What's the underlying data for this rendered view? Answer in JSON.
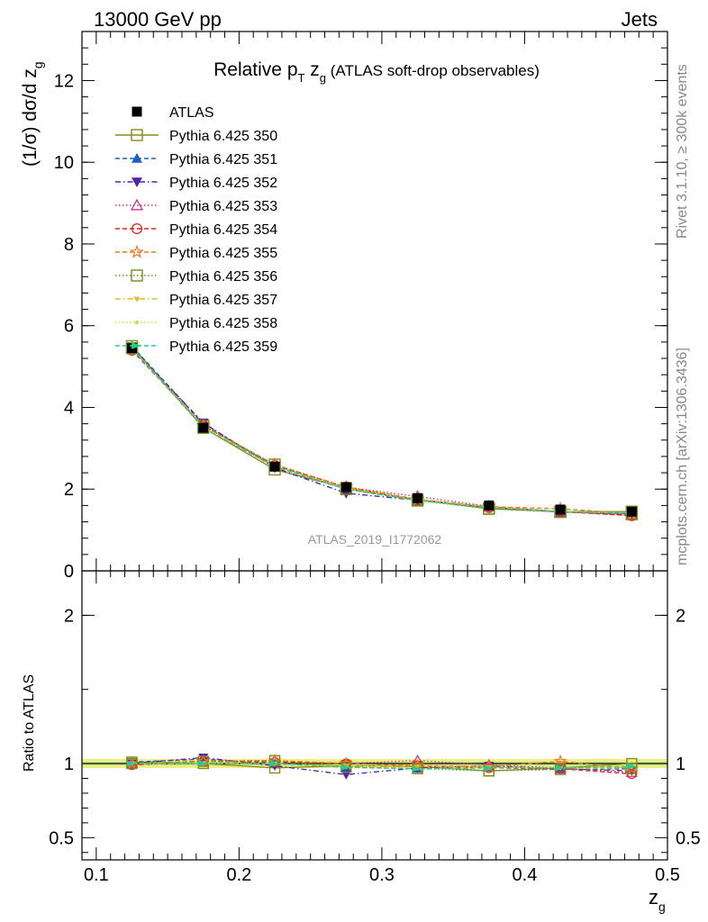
{
  "header": {
    "left": "13000 GeV pp",
    "right": "Jets"
  },
  "side_labels": {
    "rivet": "Rivet 3.1.10, ≥ 300k events",
    "mcplots": "mcplots.cern.ch [arXiv:1306.3436]"
  },
  "watermark": "ATLAS_2019_I1772062",
  "chart_data": [
    {
      "type": "line",
      "panel": "main",
      "title": {
        "main": "Relative p",
        "sub_T": "T",
        "mid": " z",
        "sub_g": "g",
        "rest": " (ATLAS soft-drop observables)"
      },
      "ylabel": "(1/σ) dσ/d z",
      "ylabel_sub": "g",
      "xlim": [
        0.09,
        0.5
      ],
      "ylim": [
        0,
        13.2
      ],
      "y_ticks": [
        "0",
        "2",
        "4",
        "6",
        "8",
        "10",
        "12"
      ],
      "legend_position": "top-left",
      "x": [
        0.125,
        0.175,
        0.225,
        0.275,
        0.325,
        0.375,
        0.425,
        0.475
      ],
      "series": [
        {
          "name": "ATLAS",
          "color": "#000000",
          "marker": "square-filled",
          "dash": "none",
          "values": [
            5.45,
            3.5,
            2.55,
            2.05,
            1.78,
            1.6,
            1.5,
            1.45
          ]
        },
        {
          "name": "Pythia 6.425 350",
          "color": "#8a8a1e",
          "marker": "square-open",
          "dash": "solid",
          "values": [
            5.5,
            3.5,
            2.48,
            2.02,
            1.74,
            1.52,
            1.45,
            1.45
          ]
        },
        {
          "name": "Pythia 6.425 351",
          "color": "#1f5fbf",
          "marker": "triangle-up-filled",
          "dash": "dashed",
          "values": [
            5.5,
            3.6,
            2.55,
            2.0,
            1.72,
            1.56,
            1.44,
            1.4
          ]
        },
        {
          "name": "Pythia 6.425 352",
          "color": "#5522aa",
          "marker": "triangle-down-filled",
          "dash": "dashdot",
          "values": [
            5.45,
            3.62,
            2.52,
            1.9,
            1.73,
            1.57,
            1.45,
            1.38
          ]
        },
        {
          "name": "Pythia 6.425 353",
          "color": "#cc3399",
          "marker": "triangle-up-open",
          "dash": "dotted",
          "values": [
            5.45,
            3.55,
            2.6,
            2.05,
            1.82,
            1.58,
            1.45,
            1.36
          ]
        },
        {
          "name": "Pythia 6.425 354",
          "color": "#dd2222",
          "marker": "circle-open",
          "dash": "dashed",
          "values": [
            5.4,
            3.55,
            2.58,
            2.05,
            1.75,
            1.55,
            1.45,
            1.35
          ]
        },
        {
          "name": "Pythia 6.425 355",
          "color": "#ee7722",
          "marker": "star-open",
          "dash": "dashed",
          "values": [
            5.45,
            3.55,
            2.6,
            2.05,
            1.75,
            1.57,
            1.52,
            1.4
          ]
        },
        {
          "name": "Pythia 6.425 356",
          "color": "#7a8a1a",
          "marker": "square-open",
          "dash": "dotted",
          "values": [
            5.45,
            3.55,
            2.6,
            2.0,
            1.72,
            1.52,
            1.44,
            1.4
          ]
        },
        {
          "name": "Pythia 6.425 357",
          "color": "#ddbb22",
          "marker": "tri-down-small",
          "dash": "dashdot",
          "values": [
            5.45,
            3.5,
            2.55,
            2.02,
            1.74,
            1.56,
            1.45,
            1.41
          ]
        },
        {
          "name": "Pythia 6.425 358",
          "color": "#ccdd33",
          "marker": "dot-small",
          "dash": "dotted",
          "values": [
            5.45,
            3.52,
            2.55,
            2.0,
            1.72,
            1.55,
            1.45,
            1.42
          ]
        },
        {
          "name": "Pythia 6.425 359",
          "color": "#22cc99",
          "marker": "arrow-right",
          "dash": "dashed",
          "values": [
            5.45,
            3.5,
            2.55,
            2.0,
            1.72,
            1.55,
            1.45,
            1.42
          ]
        }
      ]
    },
    {
      "type": "line",
      "panel": "ratio",
      "ylabel": "Ratio to ATLAS",
      "xlabel": "z",
      "xlabel_sub": "g",
      "xlim": [
        0.09,
        0.5
      ],
      "ylim": [
        0.35,
        2.3
      ],
      "y_ticks": [
        "0.5",
        "1",
        "2"
      ],
      "x_ticks": [
        "0.1",
        "0.2",
        "0.3",
        "0.4",
        "0.5"
      ],
      "band": {
        "outer": [
          0.97,
          1.03
        ],
        "inner": [
          0.985,
          1.015
        ],
        "outer_color": "#f0f07a",
        "inner_color": "#c8e890"
      },
      "x": [
        0.125,
        0.175,
        0.225,
        0.275,
        0.325,
        0.375,
        0.425,
        0.475
      ],
      "series": [
        {
          "name": "Pythia 6.425 350",
          "values": [
            1.01,
            1.0,
            0.97,
            0.985,
            0.98,
            0.95,
            0.97,
            1.0
          ]
        },
        {
          "name": "Pythia 6.425 351",
          "values": [
            1.01,
            1.03,
            1.0,
            0.975,
            0.965,
            0.975,
            0.96,
            0.965
          ]
        },
        {
          "name": "Pythia 6.425 352",
          "values": [
            1.0,
            1.04,
            0.985,
            0.925,
            0.97,
            0.985,
            0.965,
            0.95
          ]
        },
        {
          "name": "Pythia 6.425 353",
          "values": [
            1.0,
            1.015,
            1.02,
            1.0,
            1.02,
            0.99,
            0.97,
            0.94
          ]
        },
        {
          "name": "Pythia 6.425 354",
          "values": [
            0.99,
            1.015,
            1.01,
            1.0,
            0.985,
            0.97,
            0.965,
            0.93
          ]
        },
        {
          "name": "Pythia 6.425 355",
          "values": [
            1.0,
            1.015,
            1.02,
            1.0,
            0.985,
            0.98,
            1.015,
            0.965
          ]
        },
        {
          "name": "Pythia 6.425 356",
          "values": [
            1.0,
            1.015,
            1.02,
            0.975,
            0.965,
            0.95,
            0.96,
            0.965
          ]
        },
        {
          "name": "Pythia 6.425 357",
          "values": [
            1.0,
            1.0,
            1.0,
            0.985,
            0.98,
            0.975,
            0.97,
            0.975
          ]
        },
        {
          "name": "Pythia 6.425 358",
          "values": [
            1.0,
            1.005,
            1.0,
            0.975,
            0.965,
            0.97,
            0.97,
            0.98
          ]
        },
        {
          "name": "Pythia 6.425 359",
          "values": [
            1.0,
            1.0,
            1.0,
            0.975,
            0.965,
            0.97,
            0.97,
            0.98
          ]
        }
      ]
    }
  ]
}
